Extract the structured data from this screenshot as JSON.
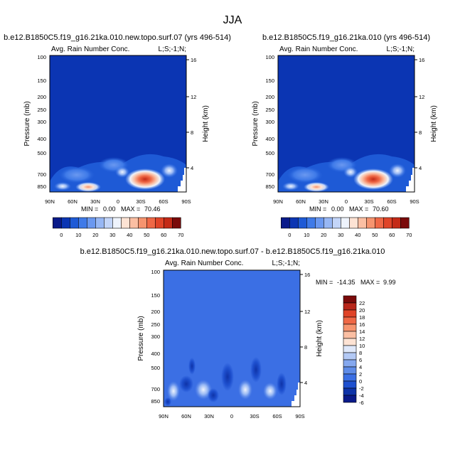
{
  "figure": {
    "title": "JJA",
    "colors": {
      "background_fill": "#0b35b3",
      "diff_fill": "#3b6fe4"
    }
  },
  "chart_data": [
    {
      "type": "heatmap",
      "id": "left",
      "title": "b.e12.B1850C5.f19_g16.21ka.010.new.topo.surf.07 (yrs 496-514)",
      "left_label": "Avg. Rain Number Conc.",
      "right_label": "L;S;-1;N;",
      "ylabel": "Pressure (mb)",
      "y2label": "Height (km)",
      "xticks": [
        "90N",
        "60N",
        "30N",
        "0",
        "30S",
        "60S",
        "90S"
      ],
      "yticks": [
        "100",
        "150",
        "200",
        "250",
        "300",
        "400",
        "500",
        "700",
        "850"
      ],
      "y2ticks": [
        "16",
        "12",
        "8",
        "4"
      ],
      "min_label": "MIN =",
      "min_value": "0.00",
      "max_label": "MAX =",
      "max_value": "70.46",
      "colorbar_ticks": [
        "0",
        "10",
        "20",
        "30",
        "40",
        "50",
        "60",
        "70"
      ]
    },
    {
      "type": "heatmap",
      "id": "right",
      "title": "b.e12.B1850C5.f19_g16.21ka.010 (yrs 496-514)",
      "left_label": "Avg. Rain Number Conc.",
      "right_label": "L;S;-1;N;",
      "ylabel": "Pressure (mb)",
      "y2label": "Height (km)",
      "xticks": [
        "90N",
        "60N",
        "30N",
        "0",
        "30S",
        "60S",
        "90S"
      ],
      "yticks": [
        "100",
        "150",
        "200",
        "250",
        "300",
        "400",
        "500",
        "700",
        "850"
      ],
      "y2ticks": [
        "16",
        "12",
        "8",
        "4"
      ],
      "min_label": "MIN =",
      "min_value": "0.00",
      "max_label": "MAX =",
      "max_value": "70.60",
      "colorbar_ticks": [
        "0",
        "10",
        "20",
        "30",
        "40",
        "50",
        "60",
        "70"
      ]
    },
    {
      "type": "heatmap",
      "id": "diff",
      "title": "b.e12.B1850C5.f19_g16.21ka.010.new.topo.surf.07 - b.e12.B1850C5.f19_g16.21ka.010",
      "left_label": "Avg. Rain Number Conc.",
      "right_label": "L;S;-1;N;",
      "ylabel": "Pressure (mb)",
      "y2label": "Height (km)",
      "xticks": [
        "90N",
        "60N",
        "30N",
        "0",
        "30S",
        "60S",
        "90S"
      ],
      "yticks": [
        "100",
        "150",
        "200",
        "250",
        "300",
        "400",
        "500",
        "700",
        "850"
      ],
      "y2ticks": [
        "16",
        "12",
        "8",
        "4"
      ],
      "min_label": "MIN =",
      "min_value": "-14.35",
      "max_label": "MAX =",
      "max_value": "9.99",
      "colorbar_ticks": [
        "22",
        "20",
        "18",
        "16",
        "14",
        "12",
        "10",
        "8",
        "6",
        "4",
        "2",
        "0",
        "-2",
        "-4",
        "-6"
      ]
    }
  ],
  "colorbar_main": [
    "#0a1a8a",
    "#0b35b3",
    "#1e5ad6",
    "#3f7ae8",
    "#6a98f0",
    "#97b7f4",
    "#c3d5f8",
    "#eef3fc",
    "#fde3d4",
    "#fbbfa3",
    "#f6946f",
    "#ef6846",
    "#e04428",
    "#c42a17",
    "#7a0a0a"
  ],
  "colorbar_diff": [
    "#7a0a0a",
    "#b8261a",
    "#e04428",
    "#ef6846",
    "#f6946f",
    "#fbbfa3",
    "#fde3d4",
    "#dfe8fa",
    "#b3c9f5",
    "#85a8ef",
    "#5f8ce8",
    "#3b6fe4",
    "#1e50cf",
    "#0e33a8",
    "#0a1a8a"
  ]
}
